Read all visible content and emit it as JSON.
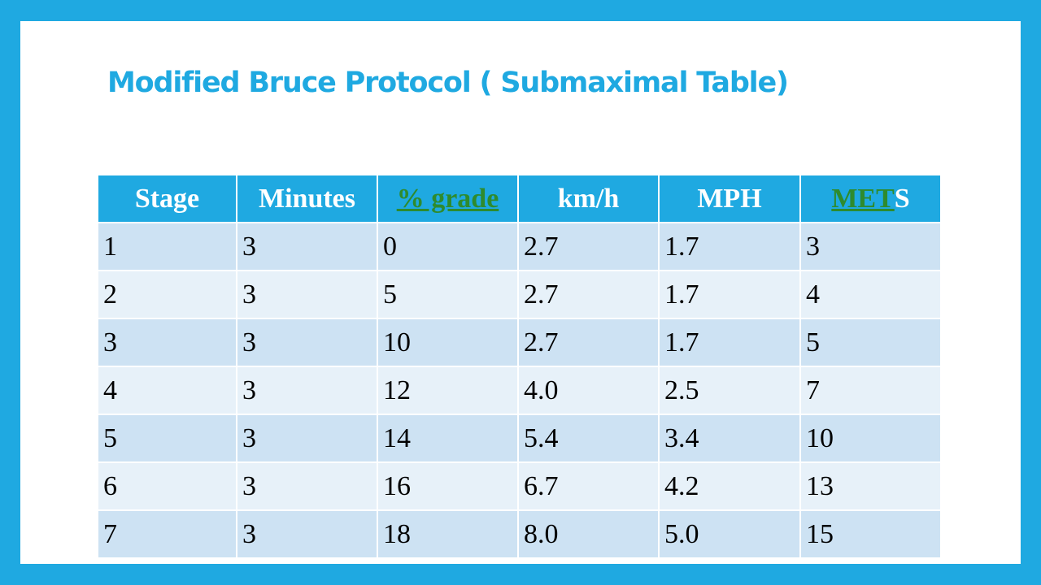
{
  "title": "Modified Bruce Protocol ( Submaximal Table)",
  "table": {
    "headers": {
      "stage": "Stage",
      "minutes": "Minutes",
      "grade": "% grade",
      "kmh": "km/h",
      "mph": "MPH",
      "mets_link": "MET",
      "mets_suffix": "S"
    },
    "rows": [
      [
        "1",
        "3",
        "0",
        "2.7",
        "1.7",
        "3"
      ],
      [
        "2",
        "3",
        "5",
        "2.7",
        "1.7",
        "4"
      ],
      [
        "3",
        "3",
        "10",
        "2.7",
        "1.7",
        "5"
      ],
      [
        "4",
        "3",
        "12",
        "4.0",
        "2.5",
        "7"
      ],
      [
        "5",
        "3",
        "14",
        "5.4",
        "3.4",
        "10"
      ],
      [
        "6",
        "3",
        "16",
        "6.7",
        "4.2",
        "13"
      ],
      [
        "7",
        "3",
        "18",
        "8.0",
        "5.0",
        "15"
      ]
    ]
  },
  "colors": {
    "background": "#1fa9e1",
    "header_fill": "#1fa9e1",
    "row_odd": "#cde2f3",
    "row_even": "#e7f1f9",
    "link": "#2e8b2e"
  }
}
